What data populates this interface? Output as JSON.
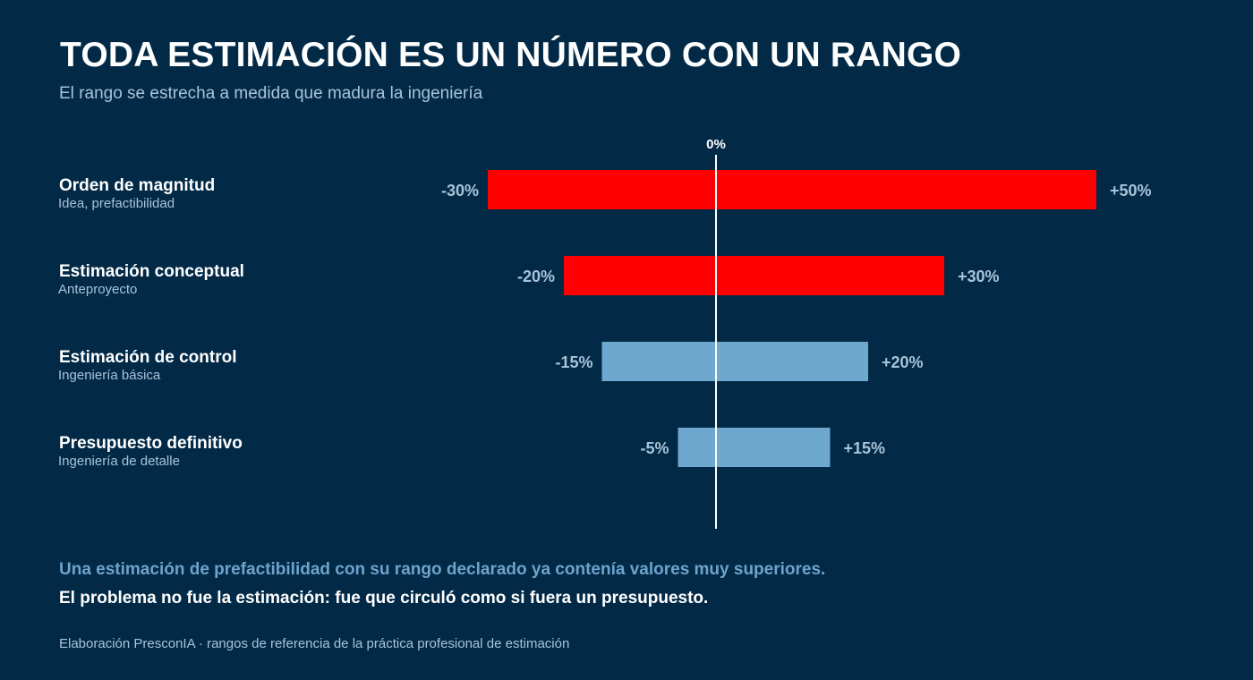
{
  "header": {
    "title": "TODA ESTIMACIÓN ES UN NÚMERO CON UN RANGO",
    "subtitle": "El rango se estrecha a medida que madura la ingeniería"
  },
  "chart_data": {
    "type": "bar",
    "orientation": "horizontal",
    "zero_label": "0%",
    "categories": [
      {
        "name": "Orden de magnitud",
        "detail": "Idea, prefactibilidad"
      },
      {
        "name": "Estimación conceptual",
        "detail": "Anteproyecto"
      },
      {
        "name": "Estimación de control",
        "detail": "Ingeniería básica"
      },
      {
        "name": "Presupuesto definitivo",
        "detail": "Ingeniería de detalle"
      }
    ],
    "ranges": [
      {
        "low": -30,
        "high": 50,
        "low_label": "-30%",
        "high_label": "+50%",
        "color": "#ff0000"
      },
      {
        "low": -20,
        "high": 30,
        "low_label": "-20%",
        "high_label": "+30%",
        "color": "#ff0000"
      },
      {
        "low": -15,
        "high": 20,
        "low_label": "-15%",
        "high_label": "+20%",
        "color": "#6fa8cf"
      },
      {
        "low": -5,
        "high": 15,
        "low_label": "-5%",
        "high_label": "+15%",
        "color": "#6fa8cf"
      }
    ],
    "xlim": [
      -30,
      50
    ],
    "grid": false,
    "colors": {
      "background": "#022a47",
      "zero_line": "#ffffff",
      "value_label": "#a9c3d8"
    }
  },
  "notes": {
    "highlight": "Una estimación de prefactibilidad con su rango declarado ya contenía valores muy superiores.",
    "conclusion": "El problema no fue la estimación: fue que circuló como si fuera un presupuesto."
  },
  "footer": {
    "source": "Elaboración PresconIA · rangos de referencia de la práctica profesional de estimación"
  }
}
